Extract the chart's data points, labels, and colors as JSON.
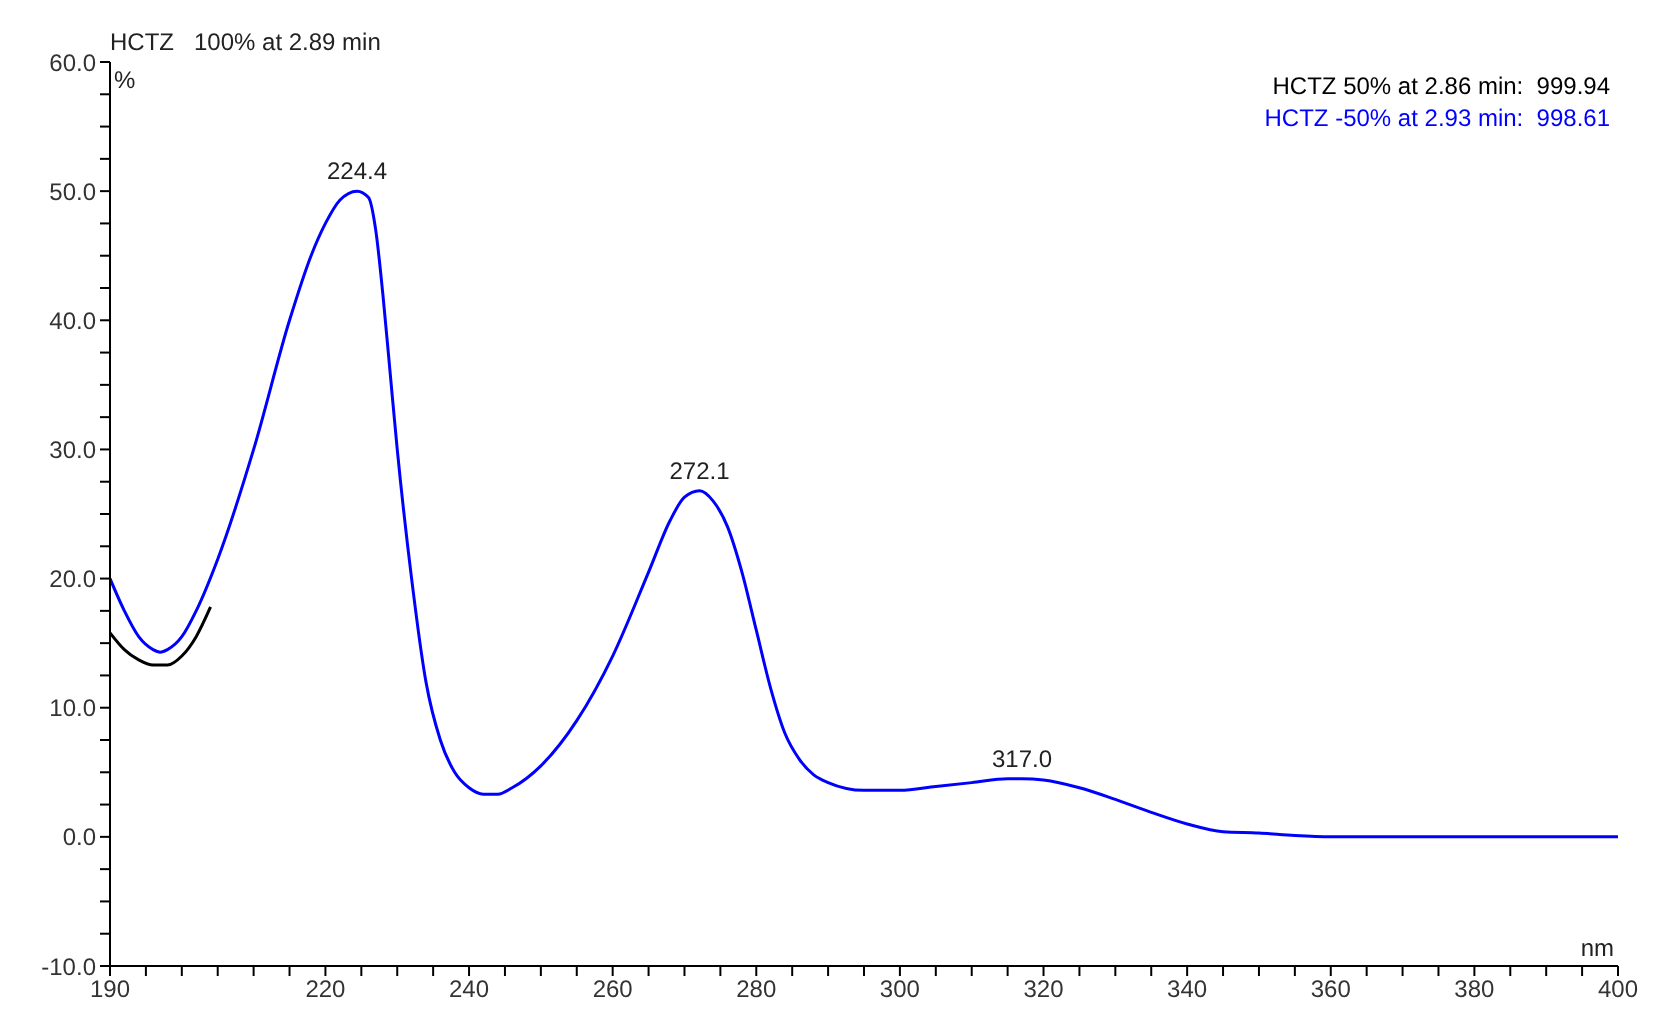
{
  "chart_data": {
    "type": "line",
    "title": "HCTZ   100% at 2.89 min",
    "ylabel": "%",
    "xlabel": "nm",
    "xlim": [
      190,
      400
    ],
    "xticks": [
      190,
      {
        "value": 195,
        "label": null
      },
      {
        "value": 200,
        "label": null
      },
      {
        "value": 205,
        "label": null
      },
      {
        "value": 210,
        "label": null
      },
      {
        "value": 215,
        "label": null
      },
      220,
      {
        "value": 225,
        "label": null
      },
      {
        "value": 230,
        "label": null
      },
      {
        "value": 235,
        "label": null
      },
      240,
      {
        "value": 245,
        "label": null
      },
      {
        "value": 250,
        "label": null
      },
      {
        "value": 255,
        "label": null
      },
      260,
      {
        "value": 265,
        "label": null
      },
      {
        "value": 270,
        "label": null
      },
      {
        "value": 275,
        "label": null
      },
      280,
      {
        "value": 285,
        "label": null
      },
      {
        "value": 290,
        "label": null
      },
      {
        "value": 295,
        "label": null
      },
      300,
      {
        "value": 305,
        "label": null
      },
      {
        "value": 310,
        "label": null
      },
      {
        "value": 315,
        "label": null
      },
      320,
      {
        "value": 325,
        "label": null
      },
      {
        "value": 330,
        "label": null
      },
      {
        "value": 335,
        "label": null
      },
      340,
      {
        "value": 345,
        "label": null
      },
      {
        "value": 350,
        "label": null
      },
      {
        "value": 355,
        "label": null
      },
      360,
      {
        "value": 365,
        "label": null
      },
      {
        "value": 370,
        "label": null
      },
      {
        "value": 375,
        "label": null
      },
      380,
      {
        "value": 385,
        "label": null
      },
      {
        "value": 390,
        "label": null
      },
      {
        "value": 395,
        "label": null
      },
      400
    ],
    "ylim": [
      -10,
      60
    ],
    "yticks": [
      {
        "value": -10,
        "label": "-10.0"
      },
      {
        "value": -7.5,
        "label": null
      },
      {
        "value": -5,
        "label": null
      },
      {
        "value": -2.5,
        "label": null
      },
      {
        "value": 0,
        "label": "0.0"
      },
      {
        "value": 2.5,
        "label": null
      },
      {
        "value": 5,
        "label": null
      },
      {
        "value": 7.5,
        "label": null
      },
      {
        "value": 10,
        "label": "10.0"
      },
      {
        "value": 12.5,
        "label": null
      },
      {
        "value": 15,
        "label": null
      },
      {
        "value": 17.5,
        "label": null
      },
      {
        "value": 20,
        "label": "20.0"
      },
      {
        "value": 22.5,
        "label": null
      },
      {
        "value": 25,
        "label": null
      },
      {
        "value": 27.5,
        "label": null
      },
      {
        "value": 30,
        "label": "30.0"
      },
      {
        "value": 32.5,
        "label": null
      },
      {
        "value": 35,
        "label": null
      },
      {
        "value": 37.5,
        "label": null
      },
      {
        "value": 40,
        "label": "40.0"
      },
      {
        "value": 42.5,
        "label": null
      },
      {
        "value": 45,
        "label": null
      },
      {
        "value": 47.5,
        "label": null
      },
      {
        "value": 50,
        "label": "50.0"
      },
      {
        "value": 52.5,
        "label": null
      },
      {
        "value": 55,
        "label": null
      },
      {
        "value": 57.5,
        "label": null
      },
      {
        "value": 60,
        "label": "60.0"
      }
    ],
    "legend": "top right",
    "marker": "none",
    "line_style": "solid",
    "series": [
      {
        "name": "HCTZ 50% at 2.86 min:  999.94",
        "color": "#000000",
        "x": [
          190,
          192,
          194,
          196,
          198,
          200,
          202,
          204
        ],
        "values": [
          15.8,
          14.5,
          13.7,
          13.3,
          13.3,
          14,
          15.5,
          17.8
        ]
      },
      {
        "name": "HCTZ -50% at 2.93 min:  998.61",
        "color": "#0000ff",
        "x": [
          190,
          192,
          194,
          196,
          197,
          198,
          200,
          202,
          205,
          210,
          215,
          218,
          220,
          222,
          224.4,
          226,
          227,
          228,
          229,
          230,
          232,
          234,
          236,
          238,
          240,
          242,
          244,
          246,
          250,
          255,
          260,
          265,
          268,
          270,
          272.1,
          274,
          276,
          278,
          280,
          282,
          284,
          286,
          288,
          290,
          295,
          300,
          305,
          310,
          315,
          317,
          320,
          325,
          330,
          335,
          340,
          345,
          350,
          355,
          360,
          400
        ],
        "values": [
          20,
          17.5,
          15.5,
          14.5,
          14.3,
          14.5,
          15.5,
          17.5,
          21.5,
          30,
          40,
          45,
          47.5,
          49.3,
          50,
          49.5,
          47,
          42,
          36,
          30,
          20,
          12,
          7.5,
          5,
          3.8,
          3.3,
          3.3,
          3.8,
          5.5,
          9,
          14,
          20.5,
          24.5,
          26.3,
          26.8,
          26,
          24,
          20.5,
          16,
          11.5,
          8,
          6,
          4.8,
          4.2,
          3.6,
          3.6,
          3.9,
          4.2,
          4.5,
          4.5,
          4.4,
          3.8,
          2.9,
          1.9,
          1,
          0.4,
          0.3,
          0.1,
          0,
          0
        ]
      }
    ],
    "annotations": [
      {
        "text": "224.4",
        "x": 224.4,
        "y": 50
      },
      {
        "text": "272.1",
        "x": 272.1,
        "y": 26.8
      },
      {
        "text": "317.0",
        "x": 317,
        "y": 4.5
      }
    ]
  }
}
